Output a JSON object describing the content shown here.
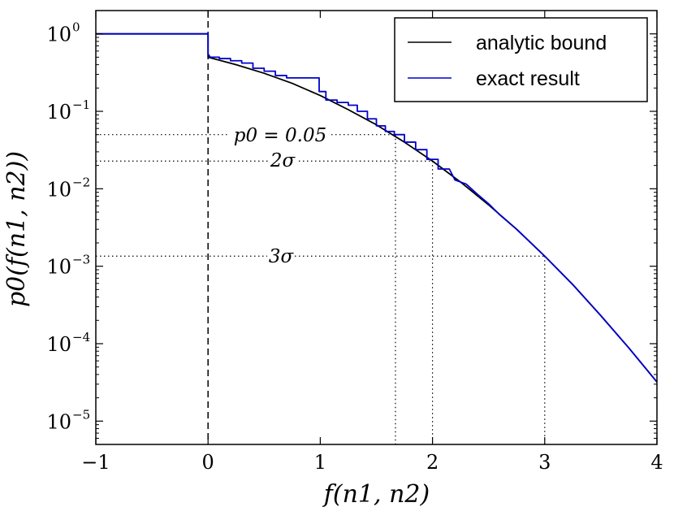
{
  "chart_data": {
    "type": "line",
    "title": "",
    "xlabel": "f(n1, n2)",
    "ylabel": "p0(f(n1, n2))",
    "xlim": [
      -1,
      4
    ],
    "ylim": [
      5e-06,
      2
    ],
    "yscale": "log",
    "grid": false,
    "legend_position": "top-right",
    "x_ticks": [
      -1,
      0,
      1,
      2,
      3,
      4
    ],
    "x_tick_labels": [
      "−1",
      "0",
      "1",
      "2",
      "3",
      "4"
    ],
    "y_ticks": [
      1,
      0.1,
      0.01,
      0.001,
      0.0001,
      1e-05
    ],
    "y_tick_labels": [
      {
        "base": "10",
        "exp": "0"
      },
      {
        "base": "10",
        "exp": "−1"
      },
      {
        "base": "10",
        "exp": "−2"
      },
      {
        "base": "10",
        "exp": "−3"
      },
      {
        "base": "10",
        "exp": "−4"
      },
      {
        "base": "10",
        "exp": "−5"
      }
    ],
    "series": [
      {
        "name": "analytic bound",
        "color": "#000000",
        "x": [
          -1,
          0,
          0,
          0.25,
          0.5,
          0.75,
          1.0,
          1.25,
          1.5,
          1.75,
          2.0,
          2.25,
          2.5,
          2.75,
          3.0,
          3.25,
          3.5,
          3.75,
          4.0
        ],
        "y": [
          1,
          1,
          0.5,
          0.4,
          0.31,
          0.23,
          0.16,
          0.105,
          0.067,
          0.04,
          0.0228,
          0.0122,
          0.0062,
          0.003,
          0.00135,
          0.00058,
          0.00023,
          8.8e-05,
          3.2e-05
        ]
      },
      {
        "name": "exact result",
        "color": "#0000cc",
        "x": [
          -1,
          0,
          0,
          0.02,
          0.1,
          0.1,
          0.2,
          0.2,
          0.3,
          0.3,
          0.4,
          0.4,
          0.5,
          0.5,
          0.6,
          0.6,
          0.7,
          0.7,
          0.99,
          0.99,
          1.05,
          1.05,
          1.15,
          1.15,
          1.25,
          1.25,
          1.33,
          1.33,
          1.42,
          1.42,
          1.5,
          1.5,
          1.58,
          1.58,
          1.66,
          1.66,
          1.75,
          1.75,
          1.85,
          1.85,
          1.95,
          1.95,
          2.05,
          2.05,
          2.15,
          2.2,
          2.3,
          2.4,
          2.5,
          2.6,
          2.75,
          3.0,
          3.25,
          3.5,
          3.75,
          4.0
        ],
        "y": [
          1,
          1,
          0.55,
          0.5,
          0.5,
          0.48,
          0.48,
          0.45,
          0.45,
          0.42,
          0.42,
          0.36,
          0.36,
          0.33,
          0.33,
          0.29,
          0.29,
          0.27,
          0.27,
          0.18,
          0.18,
          0.14,
          0.14,
          0.13,
          0.13,
          0.12,
          0.12,
          0.1,
          0.1,
          0.08,
          0.08,
          0.065,
          0.065,
          0.055,
          0.055,
          0.05,
          0.05,
          0.04,
          0.04,
          0.032,
          0.032,
          0.024,
          0.024,
          0.018,
          0.018,
          0.013,
          0.0115,
          0.0085,
          0.0064,
          0.0046,
          0.003,
          0.00135,
          0.00058,
          0.00023,
          8.8e-05,
          3.2e-05
        ]
      }
    ],
    "reference_lines": {
      "vertical_dashed_x": 0,
      "horizontal_dotted": [
        {
          "label": "p0 = 0.05",
          "y": 0.05,
          "x_end": 1.67
        },
        {
          "label": "2σ",
          "y": 0.0228,
          "x_end": 2.0
        },
        {
          "label": "3σ",
          "y": 0.00135,
          "x_end": 3.0
        }
      ]
    }
  }
}
